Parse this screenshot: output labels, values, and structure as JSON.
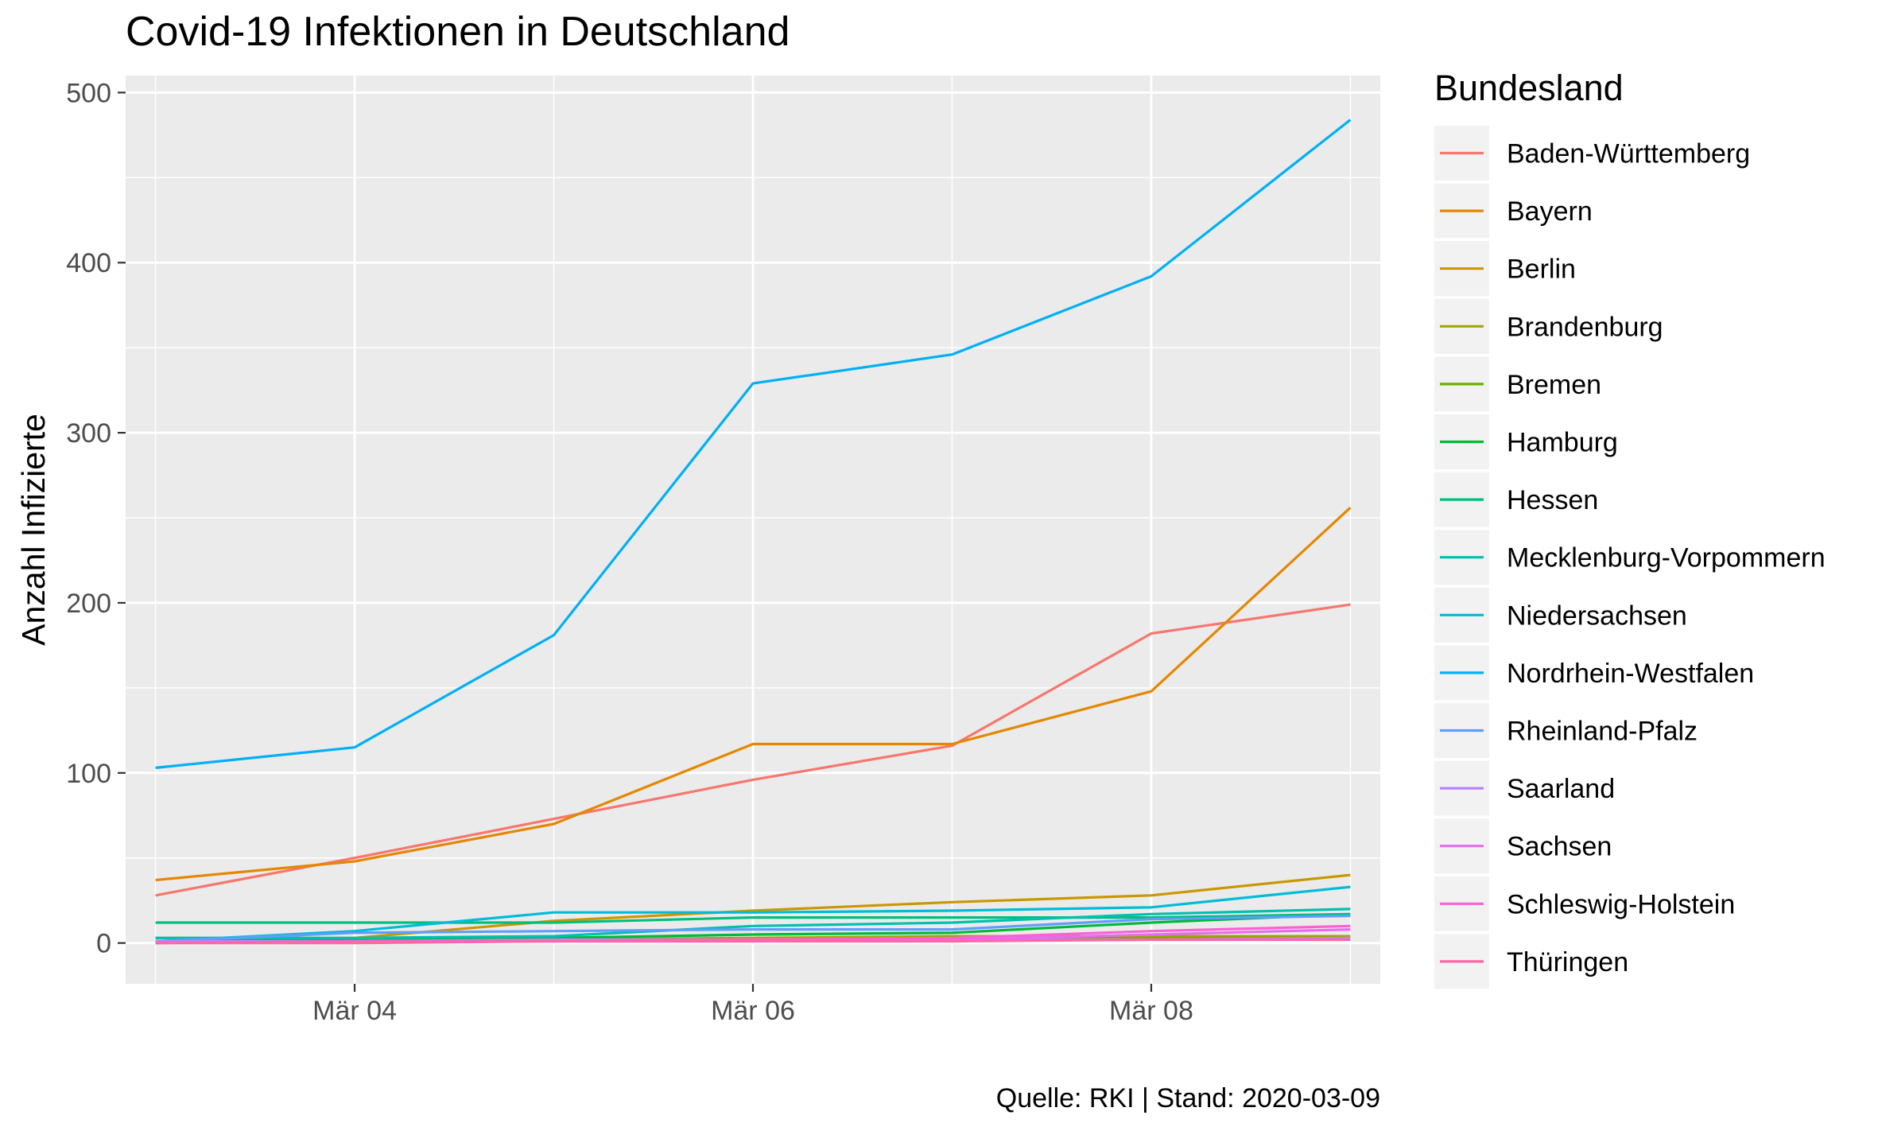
{
  "chart_data": {
    "type": "line",
    "title": "Covid-19 Infektionen in Deutschland",
    "xlabel": "",
    "ylabel": "Anzahl Infizierte",
    "caption": "Quelle: RKI | Stand: 2020-03-09",
    "legend_title": "Bundesland",
    "legend_position": "right",
    "grid": true,
    "x": [
      "2020-03-03",
      "2020-03-04",
      "2020-03-05",
      "2020-03-06",
      "2020-03-07",
      "2020-03-08",
      "2020-03-09"
    ],
    "xlim": [
      "2020-03-02.85",
      "2020-03-09.15"
    ],
    "ylim": [
      -24,
      510
    ],
    "x_ticks": [
      {
        "value": "2020-03-04",
        "label": "Mär 04"
      },
      {
        "value": "2020-03-06",
        "label": "Mär 06"
      },
      {
        "value": "2020-03-08",
        "label": "Mär 08"
      }
    ],
    "y_ticks": [
      0,
      100,
      200,
      300,
      400,
      500
    ],
    "series": [
      {
        "name": "Baden-Württemberg",
        "color": "#F8766D",
        "values": [
          28,
          50,
          73,
          96,
          116,
          182,
          199
        ]
      },
      {
        "name": "Bayern",
        "color": "#E58700",
        "values": [
          37,
          48,
          70,
          117,
          117,
          148,
          256
        ]
      },
      {
        "name": "Berlin",
        "color": "#C99800",
        "values": [
          3,
          3,
          13,
          19,
          24,
          28,
          40
        ]
      },
      {
        "name": "Brandenburg",
        "color": "#A3A500",
        "values": [
          1,
          1,
          2,
          3,
          4,
          4,
          4
        ]
      },
      {
        "name": "Bremen",
        "color": "#6BB100",
        "values": [
          1,
          1,
          2,
          2,
          3,
          3,
          3
        ]
      },
      {
        "name": "Hamburg",
        "color": "#00BA38",
        "values": [
          1,
          2,
          3,
          5,
          6,
          12,
          17
        ]
      },
      {
        "name": "Hessen",
        "color": "#00BF7D",
        "values": [
          12,
          12,
          12,
          15,
          15,
          15,
          17
        ]
      },
      {
        "name": "Mecklenburg-Vorpommern",
        "color": "#00C0AF",
        "values": [
          3,
          3,
          4,
          10,
          12,
          17,
          20
        ]
      },
      {
        "name": "Niedersachsen",
        "color": "#00BCD8",
        "values": [
          1,
          7,
          18,
          18,
          19,
          21,
          33
        ]
      },
      {
        "name": "Nordrhein-Westfalen",
        "color": "#00B0F6",
        "values": [
          103,
          115,
          181,
          329,
          346,
          392,
          484
        ]
      },
      {
        "name": "Rheinland-Pfalz",
        "color": "#619CFF",
        "values": [
          1,
          6,
          7,
          8,
          8,
          14,
          16
        ]
      },
      {
        "name": "Saarland",
        "color": "#B983FF",
        "values": [
          1,
          1,
          2,
          2,
          2,
          2,
          3
        ]
      },
      {
        "name": "Sachsen",
        "color": "#E76BF3",
        "values": [
          0,
          1,
          1,
          1,
          2,
          5,
          8
        ]
      },
      {
        "name": "Schleswig-Holstein",
        "color": "#FD61D1",
        "values": [
          0,
          1,
          1,
          2,
          3,
          7,
          10
        ]
      },
      {
        "name": "Thüringen",
        "color": "#FF67A4",
        "values": [
          0,
          0,
          1,
          1,
          1,
          2,
          2
        ]
      }
    ]
  }
}
